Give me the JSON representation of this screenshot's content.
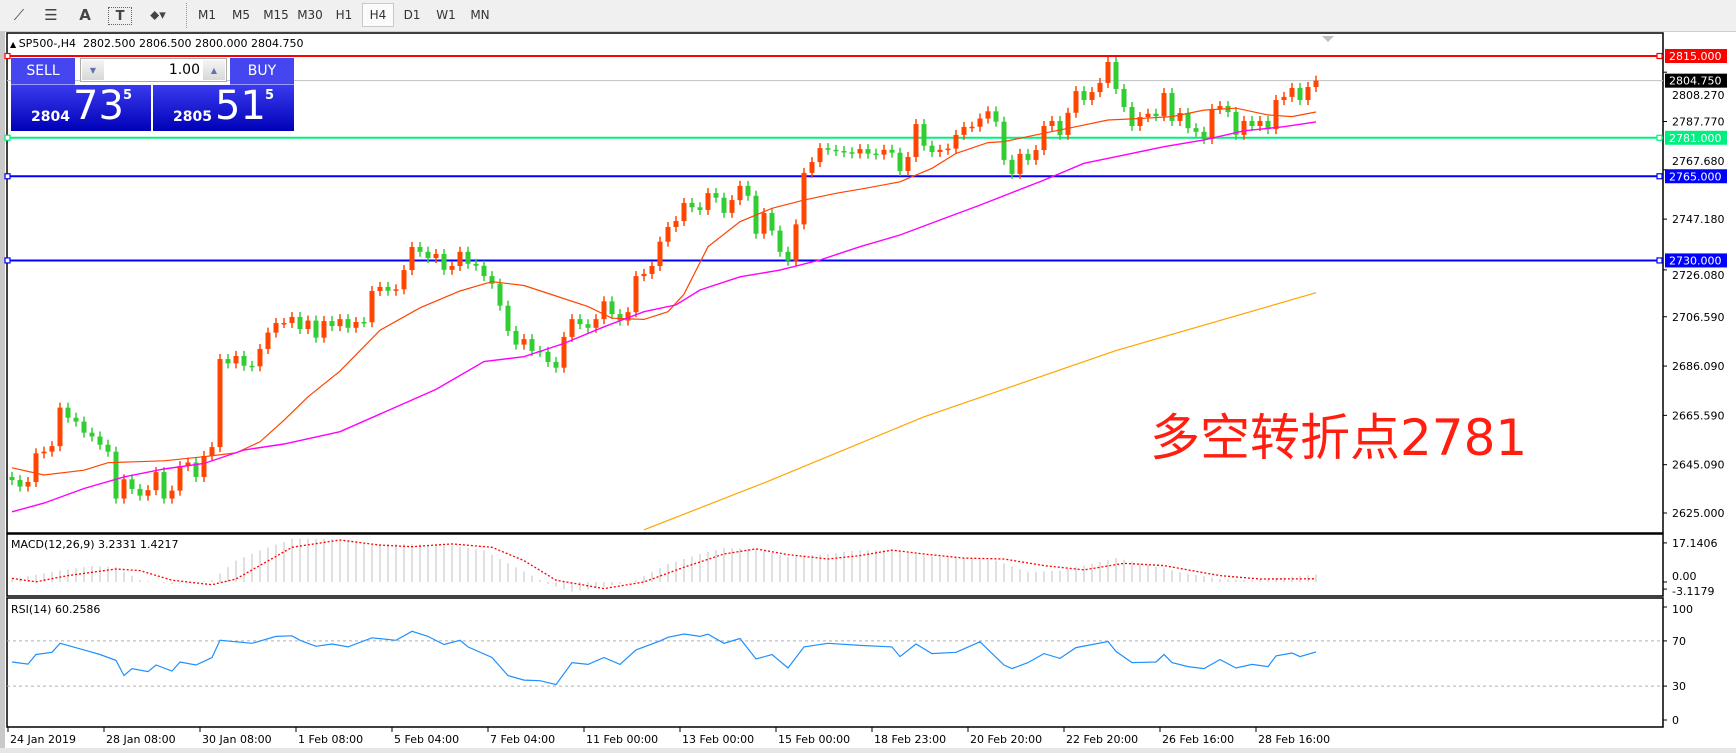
{
  "toolbar": {
    "tools": [
      {
        "icon": "fibonacci-fan-icon",
        "glyph": "⟋"
      },
      {
        "icon": "fibonacci-levels-icon",
        "glyph": "☰"
      },
      {
        "icon": "text-icon",
        "glyph": "A"
      },
      {
        "icon": "text-label-icon",
        "glyph": "T"
      },
      {
        "icon": "arrows-dropdown-icon",
        "glyph": "⬥▾"
      }
    ],
    "timeframes": [
      "M1",
      "M5",
      "M15",
      "M30",
      "H1",
      "H4",
      "D1",
      "W1",
      "MN"
    ],
    "active_timeframe": "H4"
  },
  "chart": {
    "symbol_line": "SP500-,H4  2802.500 2806.500 2800.000 2804.750",
    "price_ticks": [
      "2808.270",
      "2787.770",
      "2767.680",
      "2747.180",
      "2726.080",
      "2706.590",
      "2686.090",
      "2665.590",
      "2645.090",
      "2625.000"
    ],
    "price_tick_values": [
      2808.27,
      2787.77,
      2767.68,
      2747.18,
      2726.08,
      2706.59,
      2686.09,
      2665.59,
      2645.09,
      2625.0
    ],
    "price_range": [
      2625.0,
      2815.0
    ],
    "bid_label": "2804.750",
    "bid_value": 2804.75,
    "hlines": [
      {
        "value": 2815.0,
        "label": "2815.000",
        "color": "#ff0000"
      },
      {
        "value": 2781.0,
        "label": "2781.000",
        "color": "#00f080"
      },
      {
        "value": 2765.0,
        "label": "2765.000",
        "color": "#0000ff"
      },
      {
        "value": 2730.0,
        "label": "2730.000",
        "color": "#0000ff"
      }
    ],
    "time_labels": [
      "24 Jan 2019",
      "28 Jan 08:00",
      "30 Jan 08:00",
      "1 Feb 08:00",
      "5 Feb 04:00",
      "7 Feb 04:00",
      "11 Feb 00:00",
      "13 Feb 00:00",
      "15 Feb 00:00",
      "18 Feb 23:00",
      "20 Feb 20:00",
      "22 Feb 20:00",
      "26 Feb 16:00",
      "28 Feb 16:00"
    ],
    "bars_per_time_label": 12,
    "colors": {
      "up": "#ff4500",
      "down": "#32cd32",
      "ma_fast": "#ff4500",
      "ma_mid": "#ff00ff",
      "ma_slow": "#ffa500"
    },
    "annotation": "多空转折点2781",
    "annotation_color": "#ff1e10",
    "candles": {
      "first_open": 2640.0,
      "close": [
        2638.7,
        2636,
        2637.9,
        2649.8,
        2650.5,
        2652.8,
        2668.8,
        2664.6,
        2663,
        2658.4,
        2656.8,
        2653.4,
        2650.5,
        2631,
        2639,
        2635,
        2632.2,
        2634.5,
        2642,
        2631,
        2634.3,
        2644.5,
        2646,
        2640,
        2648.7,
        2652.4,
        2689,
        2687.2,
        2690.3,
        2686.2,
        2686,
        2693.2,
        2700,
        2704,
        2704,
        2706.5,
        2701.5,
        2705,
        2697.9,
        2704.8,
        2702.7,
        2705.6,
        2702,
        2704.4,
        2704.3,
        2717.3,
        2719,
        2717.4,
        2718,
        2726,
        2735.6,
        2733.6,
        2731,
        2732.7,
        2726.1,
        2727.7,
        2733.6,
        2728.6,
        2727.8,
        2723.5,
        2720.3,
        2711.2,
        2700.7,
        2695,
        2697.3,
        2692.4,
        2692,
        2687.8,
        2685.4,
        2698.2,
        2705.6,
        2703.5,
        2702,
        2705.6,
        2713,
        2707.7,
        2705,
        2708.5,
        2723.5,
        2724.4,
        2727.7,
        2737.8,
        2743.9,
        2746.4,
        2753.9,
        2752.1,
        2751,
        2758,
        2756.1,
        2749.8,
        2755.1,
        2761,
        2756.9,
        2741.1,
        2749.7,
        2742.4,
        2733.6,
        2729.9,
        2745,
        2766.4,
        2770.9,
        2776.7,
        2776.0,
        2775.5,
        2775.0,
        2774.5,
        2776.3,
        2774.4,
        2774.0,
        2776,
        2774.8,
        2767.2,
        2773,
        2786.7,
        2777.7,
        2775.1,
        2776,
        2776.5,
        2782.2,
        2785.5,
        2785.6,
        2789,
        2792,
        2787.7,
        2771.8,
        2766,
        2774.3,
        2771.8,
        2775.9,
        2785.9,
        2788,
        2782.2,
        2791.4,
        2800.4,
        2796.7,
        2800,
        2803.8,
        2812.5,
        2801.3,
        2793.8,
        2785.9,
        2789.6,
        2791,
        2790,
        2799.6,
        2788,
        2791.3,
        2785,
        2783.5,
        2780.5,
        2793,
        2794.2,
        2791.7,
        2782.2,
        2788,
        2785.9,
        2788,
        2784.6,
        2796.7,
        2798,
        2801.7,
        2796.7,
        2802.1,
        2804.75
      ]
    },
    "moving_averages": {
      "fast": [
        [
          0,
          2643.8
        ],
        [
          4,
          2640.8
        ],
        [
          9,
          2642.8
        ],
        [
          12,
          2645.9
        ],
        [
          19,
          2646.7
        ],
        [
          24,
          2648.4
        ],
        [
          28,
          2650
        ],
        [
          31,
          2654.6
        ],
        [
          34,
          2663.6
        ],
        [
          37,
          2673.3
        ],
        [
          41,
          2684
        ],
        [
          46,
          2701
        ],
        [
          51,
          2710.3
        ],
        [
          56,
          2717.3
        ],
        [
          60,
          2721.2
        ],
        [
          64,
          2719.6
        ],
        [
          68,
          2715.2
        ],
        [
          72,
          2710.8
        ],
        [
          75,
          2706
        ],
        [
          79,
          2705.5
        ],
        [
          82,
          2708.7
        ],
        [
          84,
          2716
        ],
        [
          87,
          2735.7
        ],
        [
          91,
          2746.1
        ],
        [
          95,
          2751.7
        ],
        [
          99,
          2755.1
        ],
        [
          103,
          2757.9
        ],
        [
          107,
          2760.2
        ],
        [
          111,
          2762.7
        ],
        [
          115,
          2768.3
        ],
        [
          118,
          2774.5
        ],
        [
          122,
          2779
        ],
        [
          124,
          2779.4
        ],
        [
          129,
          2782.9
        ],
        [
          133,
          2785.6
        ],
        [
          137,
          2788.4
        ],
        [
          141,
          2789
        ],
        [
          145,
          2789.8
        ],
        [
          149,
          2792.5
        ],
        [
          153,
          2793.3
        ],
        [
          157,
          2790.5
        ],
        [
          160,
          2789.8
        ],
        [
          163,
          2791.7
        ]
      ],
      "mid": [
        [
          0,
          2625.5
        ],
        [
          4,
          2629.1
        ],
        [
          9,
          2635.2
        ],
        [
          14,
          2640
        ],
        [
          19,
          2643.3
        ],
        [
          24,
          2645.6
        ],
        [
          29,
          2651.2
        ],
        [
          34,
          2653.7
        ],
        [
          41,
          2658.8
        ],
        [
          53,
          2676.4
        ],
        [
          59,
          2688
        ],
        [
          64,
          2690
        ],
        [
          69,
          2695.5
        ],
        [
          74,
          2702.4
        ],
        [
          79,
          2708.7
        ],
        [
          83,
          2711.5
        ],
        [
          86,
          2717.7
        ],
        [
          91,
          2723.2
        ],
        [
          96,
          2726
        ],
        [
          101,
          2730.2
        ],
        [
          106,
          2735.7
        ],
        [
          111,
          2740.6
        ],
        [
          116,
          2746.8
        ],
        [
          121,
          2753
        ],
        [
          129,
          2763.4
        ],
        [
          134,
          2770.4
        ],
        [
          139,
          2773.8
        ],
        [
          144,
          2777.3
        ],
        [
          149,
          2780.1
        ],
        [
          154,
          2783.9
        ],
        [
          159,
          2785.6
        ],
        [
          163,
          2787.6
        ]
      ],
      "slow": [
        [
          79,
          2618
        ],
        [
          94,
          2637.5
        ],
        [
          114,
          2665
        ],
        [
          138,
          2692.5
        ],
        [
          163,
          2716.6
        ]
      ]
    }
  },
  "macd": {
    "title": "MACD(12,26,9) 3.2331 1.4217",
    "ticks": [
      "17.1406",
      "0.00",
      "-3.1179"
    ],
    "range": [
      -5.0,
      19.0
    ],
    "histogram": [
      [
        0,
        1.3
      ],
      [
        6,
        5
      ],
      [
        10,
        7
      ],
      [
        13,
        6.5
      ],
      [
        16,
        0.8
      ],
      [
        20,
        -0.9
      ],
      [
        25,
        0.8
      ],
      [
        28,
        9.4
      ],
      [
        31,
        13.8
      ],
      [
        35,
        18.9
      ],
      [
        40,
        18.9
      ],
      [
        44,
        16.7
      ],
      [
        49,
        16.7
      ],
      [
        55,
        15.9
      ],
      [
        59,
        13.8
      ],
      [
        63,
        6.4
      ],
      [
        67,
        -0.9
      ],
      [
        70,
        -4.3
      ],
      [
        74,
        -2.2
      ],
      [
        78,
        0.8
      ],
      [
        82,
        7.9
      ],
      [
        86,
        12.3
      ],
      [
        89,
        14.9
      ],
      [
        93,
        14.5
      ],
      [
        97,
        11
      ],
      [
        102,
        12.3
      ],
      [
        106,
        14
      ],
      [
        110,
        14
      ],
      [
        114,
        11.5
      ],
      [
        119,
        10.5
      ],
      [
        123,
        9.4
      ],
      [
        127,
        4.3
      ],
      [
        131,
        5
      ],
      [
        136,
        8.7
      ],
      [
        138,
        10.5
      ],
      [
        142,
        7.5
      ],
      [
        146,
        4.3
      ],
      [
        151,
        1.3
      ],
      [
        155,
        0.8
      ],
      [
        159,
        2
      ],
      [
        163,
        3.2331
      ]
    ],
    "signal": [
      [
        0,
        1.6
      ],
      [
        3,
        0.1
      ],
      [
        7,
        2.8
      ],
      [
        13,
        5.7
      ],
      [
        16,
        5
      ],
      [
        20,
        0.8
      ],
      [
        25,
        -1.2
      ],
      [
        28,
        1.3
      ],
      [
        31,
        7.3
      ],
      [
        35,
        15.2
      ],
      [
        41,
        18.4
      ],
      [
        46,
        16.2
      ],
      [
        50,
        15.5
      ],
      [
        55,
        16.7
      ],
      [
        60,
        15.2
      ],
      [
        64,
        9.4
      ],
      [
        68,
        0.8
      ],
      [
        74,
        -2.9
      ],
      [
        79,
        0
      ],
      [
        84,
        6.5
      ],
      [
        89,
        12.3
      ],
      [
        93,
        14.5
      ],
      [
        97,
        12
      ],
      [
        102,
        10.1
      ],
      [
        106,
        11.6
      ],
      [
        110,
        14
      ],
      [
        114,
        12.3
      ],
      [
        119,
        10.5
      ],
      [
        124,
        10.1
      ],
      [
        129,
        7.2
      ],
      [
        134,
        5.3
      ],
      [
        139,
        8.2
      ],
      [
        144,
        7.2
      ],
      [
        151,
        2.8
      ],
      [
        156,
        1.3
      ],
      [
        163,
        1.4217
      ]
    ],
    "histogram_color": "#c0c0c0",
    "signal_color": "#ff0000"
  },
  "rsi": {
    "title": "RSI(14) 60.2586",
    "ticks": [
      "100",
      "70",
      "30",
      "0"
    ],
    "levels": [
      70,
      30
    ],
    "color": "#1e90ff",
    "values": [
      [
        0,
        51.3
      ],
      [
        2,
        49.5
      ],
      [
        3,
        58
      ],
      [
        5,
        59.9
      ],
      [
        6,
        67.9
      ],
      [
        9,
        62
      ],
      [
        11,
        58
      ],
      [
        13,
        52.7
      ],
      [
        14,
        39.3
      ],
      [
        15,
        45.5
      ],
      [
        17,
        42.8
      ],
      [
        18,
        48.7
      ],
      [
        20,
        43.3
      ],
      [
        21,
        51.3
      ],
      [
        23,
        48.7
      ],
      [
        25,
        55.3
      ],
      [
        26,
        70.5
      ],
      [
        30,
        67.9
      ],
      [
        33,
        74
      ],
      [
        35,
        74.5
      ],
      [
        36,
        70.5
      ],
      [
        38,
        65.2
      ],
      [
        40,
        67.3
      ],
      [
        42,
        64.7
      ],
      [
        45,
        72.7
      ],
      [
        48,
        70.5
      ],
      [
        50,
        78.5
      ],
      [
        52,
        74
      ],
      [
        54,
        66.8
      ],
      [
        56,
        70.5
      ],
      [
        57,
        64.7
      ],
      [
        60,
        55.3
      ],
      [
        62,
        39.3
      ],
      [
        64,
        35.3
      ],
      [
        66,
        34.8
      ],
      [
        68,
        31.3
      ],
      [
        70,
        50.8
      ],
      [
        72,
        49.2
      ],
      [
        74,
        55.3
      ],
      [
        76,
        49.2
      ],
      [
        78,
        62
      ],
      [
        81,
        70
      ],
      [
        82,
        73.2
      ],
      [
        84,
        76.1
      ],
      [
        86,
        74
      ],
      [
        87,
        75.9
      ],
      [
        89,
        67.9
      ],
      [
        91,
        72.1
      ],
      [
        93,
        54
      ],
      [
        95,
        58
      ],
      [
        97,
        46
      ],
      [
        99,
        64.7
      ],
      [
        102,
        67.9
      ],
      [
        106,
        66
      ],
      [
        110,
        64.7
      ],
      [
        111,
        56.1
      ],
      [
        113,
        67.3
      ],
      [
        115,
        58.8
      ],
      [
        118,
        59.9
      ],
      [
        121,
        69.2
      ],
      [
        124,
        48.7
      ],
      [
        125,
        45.5
      ],
      [
        127,
        50.8
      ],
      [
        129,
        58.8
      ],
      [
        131,
        54.5
      ],
      [
        133,
        64.1
      ],
      [
        137,
        69.5
      ],
      [
        138,
        60.7
      ],
      [
        140,
        50.8
      ],
      [
        143,
        51.3
      ],
      [
        144,
        58
      ],
      [
        145,
        50.8
      ],
      [
        147,
        47.3
      ],
      [
        149,
        45.5
      ],
      [
        151,
        53.5
      ],
      [
        153,
        46
      ],
      [
        155,
        49.2
      ],
      [
        157,
        47.3
      ],
      [
        158,
        56.7
      ],
      [
        160,
        59.3
      ],
      [
        161,
        56.1
      ],
      [
        163,
        60.2586
      ]
    ]
  },
  "trade_panel": {
    "sell_label": "SELL",
    "buy_label": "BUY",
    "lot": "1.00",
    "sell_price": {
      "prefix": "2804",
      "big": "73",
      "sup": "5"
    },
    "buy_price": {
      "prefix": "2805",
      "big": "51",
      "sup": "5"
    }
  }
}
